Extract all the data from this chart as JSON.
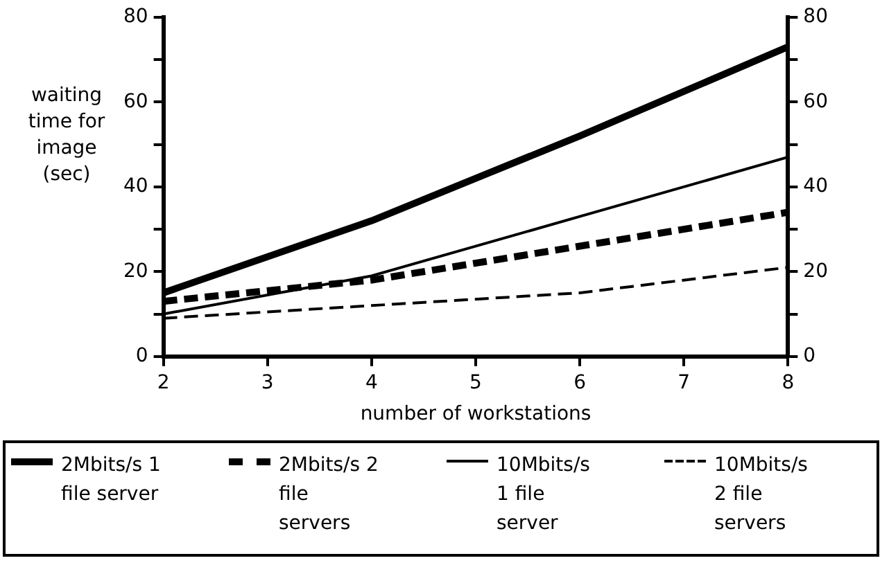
{
  "chart_data": {
    "type": "line",
    "xlabel": "number of workstations",
    "ylabel": "waiting time for image (sec)",
    "x": [
      2,
      4,
      6,
      8
    ],
    "xlim": [
      2,
      8
    ],
    "xticks": [
      2,
      3,
      4,
      5,
      6,
      7,
      8
    ],
    "ylim": [
      0,
      80
    ],
    "yticks": [
      0,
      {
        "value": 10,
        "label": null
      },
      20,
      {
        "value": 30,
        "label": null
      },
      40,
      {
        "value": 50,
        "label": null
      },
      60,
      {
        "value": 70,
        "label": null
      },
      80
    ],
    "y2lim": [
      0,
      80
    ],
    "y2ticks": [
      0,
      {
        "value": 10,
        "label": null
      },
      20,
      {
        "value": 30,
        "label": null
      },
      40,
      {
        "value": 50,
        "label": null
      },
      60,
      {
        "value": 70,
        "label": null
      },
      80
    ],
    "grid": false,
    "legend": "bottom",
    "marker": "none",
    "series": [
      {
        "name": "2Mbits/s 1 file server",
        "color": "#000000",
        "line_style": "solid",
        "values": [
          15,
          32,
          52,
          73
        ]
      },
      {
        "name": "2Mbits/s 2 file servers",
        "color": "#000000",
        "line_style": "dashed",
        "values": [
          13,
          18,
          26,
          34
        ]
      },
      {
        "name": "10Mbits/s 1 file server",
        "color": "#000000",
        "line_style": "solid",
        "values": [
          10,
          19,
          33,
          47
        ]
      },
      {
        "name": "10Mbits/s 2 file servers",
        "color": "#000000",
        "line_style": "dashed",
        "values": [
          9,
          12,
          15,
          21
        ]
      }
    ]
  }
}
